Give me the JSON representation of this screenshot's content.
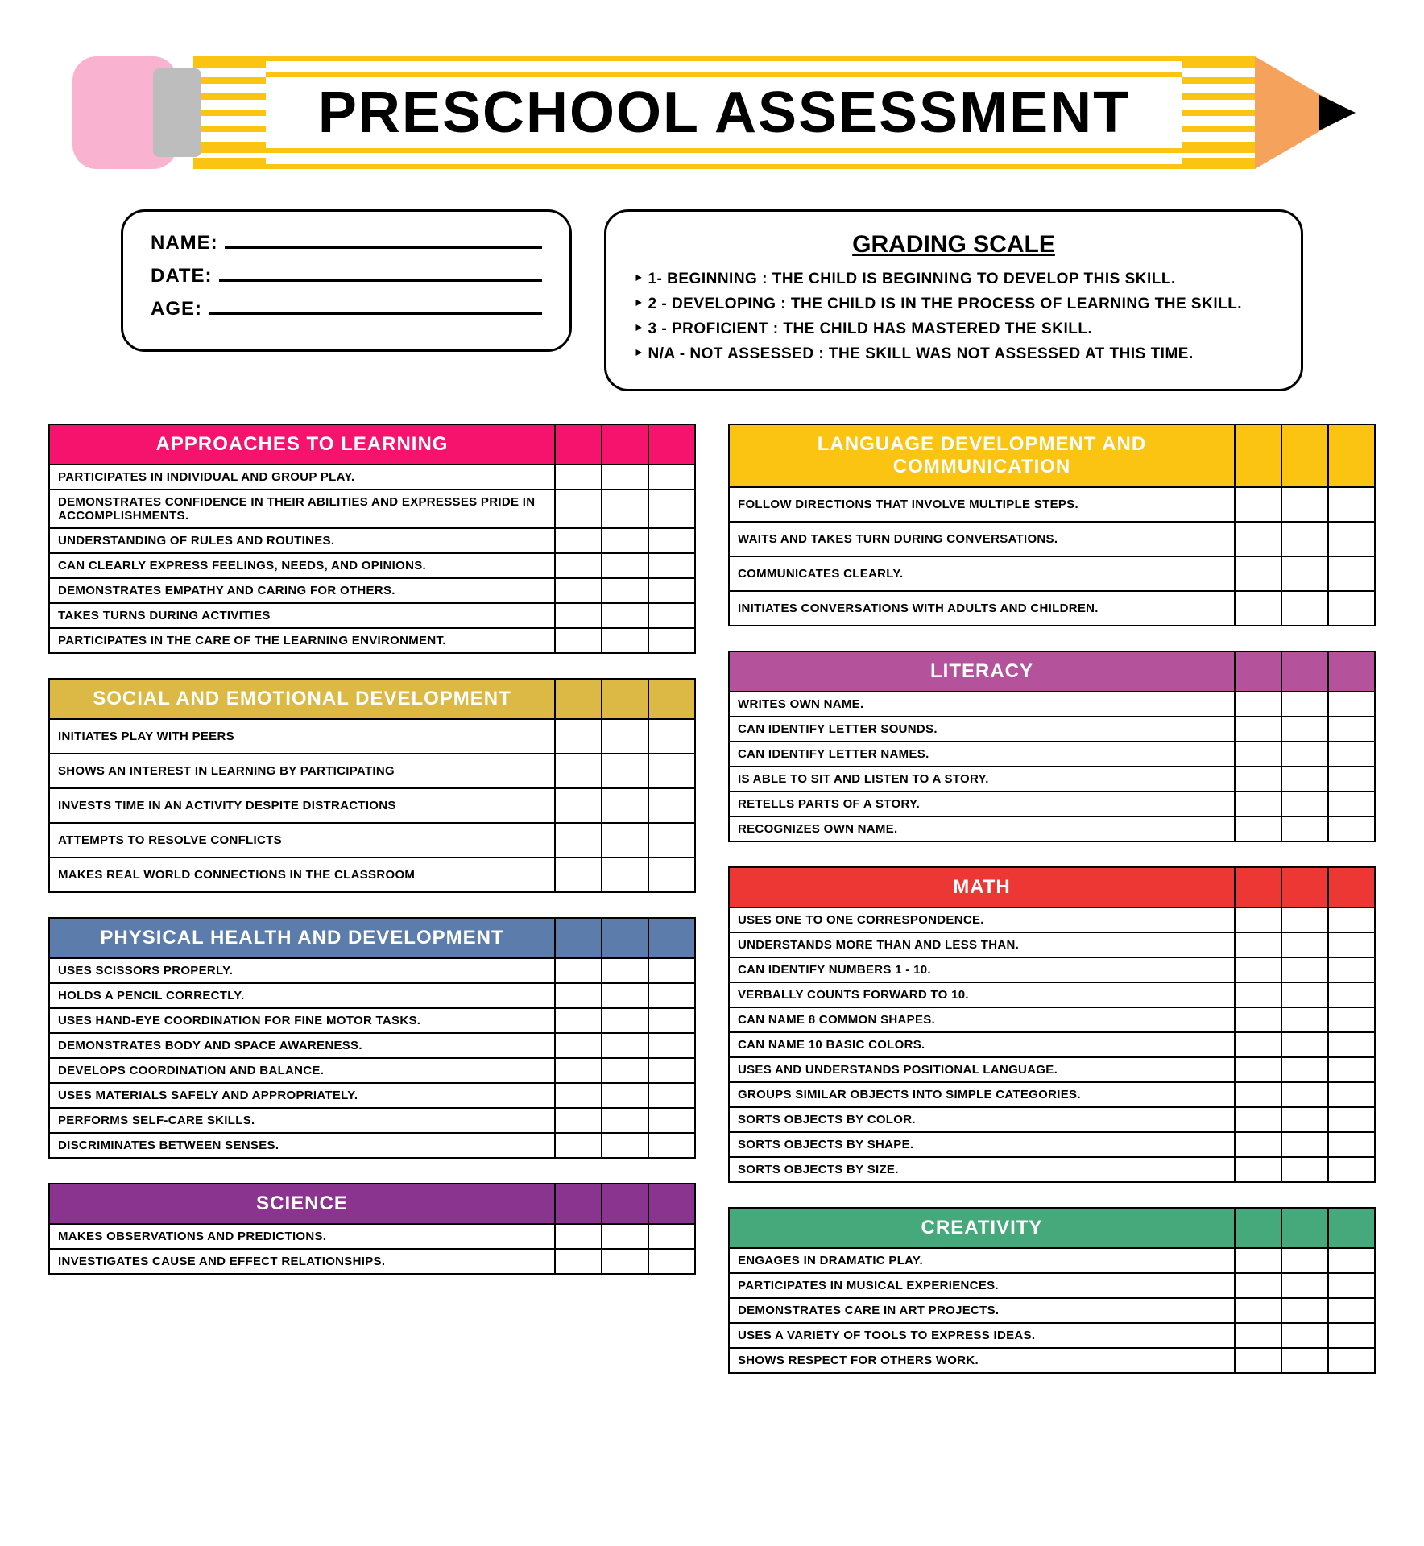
{
  "title": "PRESCHOOL ASSESSMENT",
  "info": {
    "name_label": "NAME:",
    "date_label": "DATE:",
    "age_label": "AGE:"
  },
  "grading": {
    "title": "GRADING SCALE",
    "items": [
      "‣  1-   Beginning  : The child is beginning to develop this skill.",
      "‣  2 -  Developing  : The child is in the process of learning the skill.",
      "‣  3 -  Proficient  : The child has mastered the skill.",
      "‣ N/A  -   Not Assessed : The skill was not assessed at this time."
    ]
  },
  "columns": {
    "grade_col_count": 3
  },
  "colors": {
    "pink": "#f6136e",
    "mustard": "#dcb844",
    "blue": "#5c7cac",
    "purple": "#8a3490",
    "yellow": "#fbc412",
    "plum": "#b4529b",
    "red": "#ec3734",
    "green": "#46a97c"
  },
  "left_sections": [
    {
      "title": "Approaches to Learning",
      "color_key": "pink",
      "skills": [
        "Participates in individual and group play.",
        "Demonstrates confidence in their abilities and expresses pride in accomplishments.",
        "Understanding of rules and routines.",
        "Can clearly express feelings, needs, and opinions.",
        "Demonstrates empathy and caring for others.",
        "Takes turns during activities",
        "Participates in the care of the learning environment."
      ]
    },
    {
      "title": "Social and Emotional Development",
      "color_key": "mustard",
      "row_padding": "large",
      "skills": [
        "Initiates play with peers",
        "Shows an interest in learning by participating",
        "Invests time in an activity despite distractions",
        "Attempts to resolve conflicts",
        "Makes real world connections in the classroom"
      ]
    },
    {
      "title": "Physical Health and Development",
      "color_key": "blue",
      "skills": [
        "Uses scissors properly.",
        "Holds a pencil correctly.",
        "Uses hand-eye coordination for fine motor tasks.",
        "Demonstrates body and space awareness.",
        "Develops coordination and balance.",
        "Uses materials safely and appropriately.",
        "Performs self-care skills.",
        "Discriminates between senses."
      ]
    },
    {
      "title": "Science",
      "color_key": "purple",
      "skills": [
        "Makes observations and predictions.",
        "Investigates cause and effect relationships."
      ]
    }
  ],
  "right_sections": [
    {
      "title": "Language Development and Communication",
      "color_key": "yellow",
      "row_padding": "large",
      "skills": [
        "Follow directions that involve multiple steps.",
        "Waits and takes turn during conversations.",
        "Communicates clearly.",
        "Initiates conversations with adults and children."
      ]
    },
    {
      "title": "Literacy",
      "color_key": "plum",
      "skills": [
        "Writes own name.",
        "Can identify letter sounds.",
        "Can identify letter names.",
        "Is able to sit and listen to a story.",
        "Retells parts of a story.",
        "Recognizes own name."
      ]
    },
    {
      "title": "Math",
      "color_key": "red",
      "skills": [
        "Uses one to one correspondence.",
        "Understands more than and less than.",
        "Can identify numbers 1 - 10.",
        "Verbally counts forward to 10.",
        "Can name 8 common shapes.",
        "Can name 10 basic colors.",
        "Uses and understands positional language.",
        "Groups similar objects into simple categories.",
        "Sorts objects by color.",
        "Sorts objects by shape.",
        "Sorts objects by size."
      ]
    },
    {
      "title": "Creativity",
      "color_key": "green",
      "skills": [
        "Engages in dramatic play.",
        "Participates in musical experiences.",
        "Demonstrates care in art projects.",
        "Uses a variety of tools to express ideas.",
        "Shows respect for others work."
      ]
    }
  ]
}
